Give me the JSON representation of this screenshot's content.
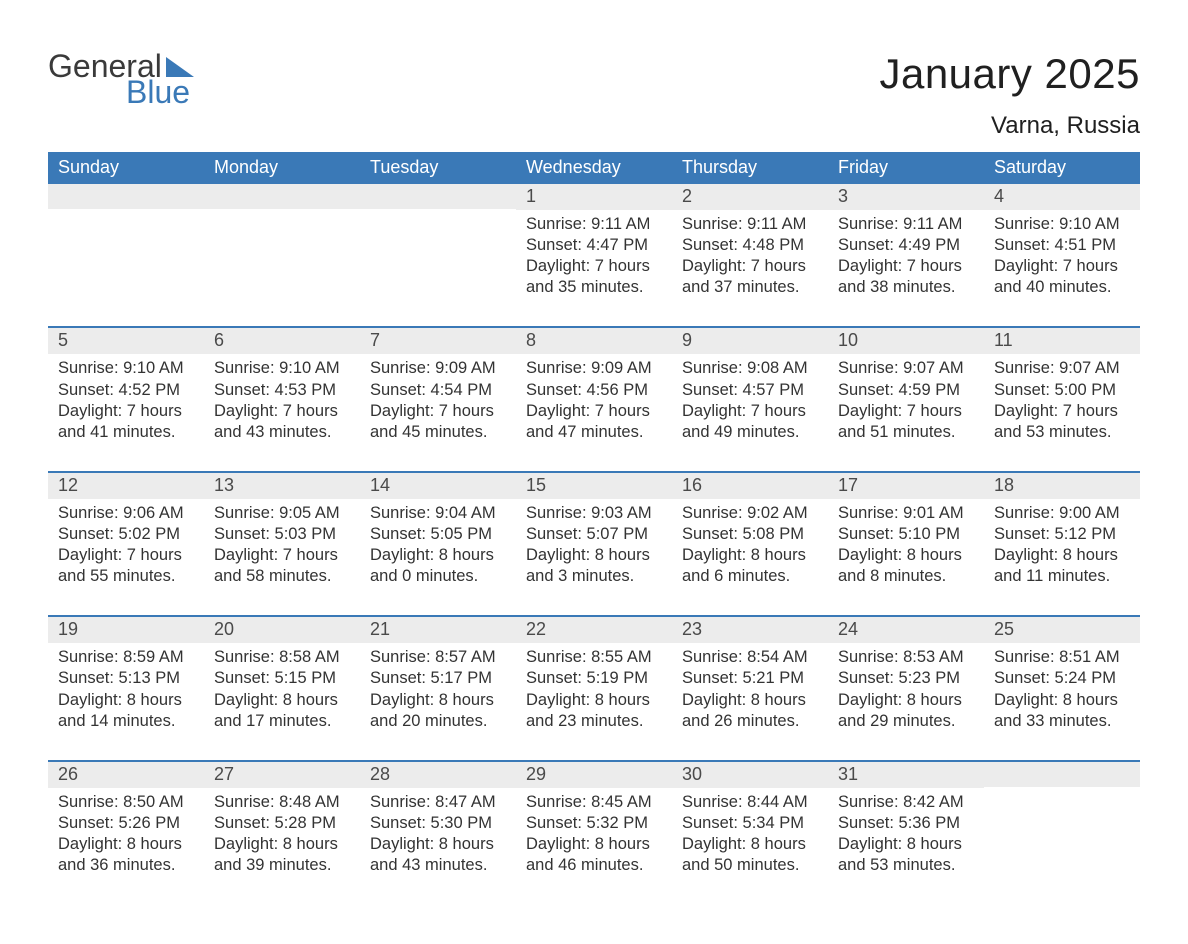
{
  "logo": {
    "word1": "General",
    "word2": "Blue"
  },
  "header": {
    "title": "January 2025",
    "location": "Varna, Russia"
  },
  "style": {
    "header_bg": "#3a79b7",
    "header_text": "#ffffff",
    "daynum_bg": "#ececec",
    "row_divider": "#3a79b7",
    "body_text": "#333333",
    "title_fontsize": 42,
    "location_fontsize": 24,
    "dayheader_fontsize": 18,
    "cell_fontsize": 16.5
  },
  "day_headers": [
    "Sunday",
    "Monday",
    "Tuesday",
    "Wednesday",
    "Thursday",
    "Friday",
    "Saturday"
  ],
  "weeks": [
    [
      null,
      null,
      null,
      {
        "n": "1",
        "sunrise": "Sunrise: 9:11 AM",
        "sunset": "Sunset: 4:47 PM",
        "daylight": "Daylight: 7 hours and 35 minutes."
      },
      {
        "n": "2",
        "sunrise": "Sunrise: 9:11 AM",
        "sunset": "Sunset: 4:48 PM",
        "daylight": "Daylight: 7 hours and 37 minutes."
      },
      {
        "n": "3",
        "sunrise": "Sunrise: 9:11 AM",
        "sunset": "Sunset: 4:49 PM",
        "daylight": "Daylight: 7 hours and 38 minutes."
      },
      {
        "n": "4",
        "sunrise": "Sunrise: 9:10 AM",
        "sunset": "Sunset: 4:51 PM",
        "daylight": "Daylight: 7 hours and 40 minutes."
      }
    ],
    [
      {
        "n": "5",
        "sunrise": "Sunrise: 9:10 AM",
        "sunset": "Sunset: 4:52 PM",
        "daylight": "Daylight: 7 hours and 41 minutes."
      },
      {
        "n": "6",
        "sunrise": "Sunrise: 9:10 AM",
        "sunset": "Sunset: 4:53 PM",
        "daylight": "Daylight: 7 hours and 43 minutes."
      },
      {
        "n": "7",
        "sunrise": "Sunrise: 9:09 AM",
        "sunset": "Sunset: 4:54 PM",
        "daylight": "Daylight: 7 hours and 45 minutes."
      },
      {
        "n": "8",
        "sunrise": "Sunrise: 9:09 AM",
        "sunset": "Sunset: 4:56 PM",
        "daylight": "Daylight: 7 hours and 47 minutes."
      },
      {
        "n": "9",
        "sunrise": "Sunrise: 9:08 AM",
        "sunset": "Sunset: 4:57 PM",
        "daylight": "Daylight: 7 hours and 49 minutes."
      },
      {
        "n": "10",
        "sunrise": "Sunrise: 9:07 AM",
        "sunset": "Sunset: 4:59 PM",
        "daylight": "Daylight: 7 hours and 51 minutes."
      },
      {
        "n": "11",
        "sunrise": "Sunrise: 9:07 AM",
        "sunset": "Sunset: 5:00 PM",
        "daylight": "Daylight: 7 hours and 53 minutes."
      }
    ],
    [
      {
        "n": "12",
        "sunrise": "Sunrise: 9:06 AM",
        "sunset": "Sunset: 5:02 PM",
        "daylight": "Daylight: 7 hours and 55 minutes."
      },
      {
        "n": "13",
        "sunrise": "Sunrise: 9:05 AM",
        "sunset": "Sunset: 5:03 PM",
        "daylight": "Daylight: 7 hours and 58 minutes."
      },
      {
        "n": "14",
        "sunrise": "Sunrise: 9:04 AM",
        "sunset": "Sunset: 5:05 PM",
        "daylight": "Daylight: 8 hours and 0 minutes."
      },
      {
        "n": "15",
        "sunrise": "Sunrise: 9:03 AM",
        "sunset": "Sunset: 5:07 PM",
        "daylight": "Daylight: 8 hours and 3 minutes."
      },
      {
        "n": "16",
        "sunrise": "Sunrise: 9:02 AM",
        "sunset": "Sunset: 5:08 PM",
        "daylight": "Daylight: 8 hours and 6 minutes."
      },
      {
        "n": "17",
        "sunrise": "Sunrise: 9:01 AM",
        "sunset": "Sunset: 5:10 PM",
        "daylight": "Daylight: 8 hours and 8 minutes."
      },
      {
        "n": "18",
        "sunrise": "Sunrise: 9:00 AM",
        "sunset": "Sunset: 5:12 PM",
        "daylight": "Daylight: 8 hours and 11 minutes."
      }
    ],
    [
      {
        "n": "19",
        "sunrise": "Sunrise: 8:59 AM",
        "sunset": "Sunset: 5:13 PM",
        "daylight": "Daylight: 8 hours and 14 minutes."
      },
      {
        "n": "20",
        "sunrise": "Sunrise: 8:58 AM",
        "sunset": "Sunset: 5:15 PM",
        "daylight": "Daylight: 8 hours and 17 minutes."
      },
      {
        "n": "21",
        "sunrise": "Sunrise: 8:57 AM",
        "sunset": "Sunset: 5:17 PM",
        "daylight": "Daylight: 8 hours and 20 minutes."
      },
      {
        "n": "22",
        "sunrise": "Sunrise: 8:55 AM",
        "sunset": "Sunset: 5:19 PM",
        "daylight": "Daylight: 8 hours and 23 minutes."
      },
      {
        "n": "23",
        "sunrise": "Sunrise: 8:54 AM",
        "sunset": "Sunset: 5:21 PM",
        "daylight": "Daylight: 8 hours and 26 minutes."
      },
      {
        "n": "24",
        "sunrise": "Sunrise: 8:53 AM",
        "sunset": "Sunset: 5:23 PM",
        "daylight": "Daylight: 8 hours and 29 minutes."
      },
      {
        "n": "25",
        "sunrise": "Sunrise: 8:51 AM",
        "sunset": "Sunset: 5:24 PM",
        "daylight": "Daylight: 8 hours and 33 minutes."
      }
    ],
    [
      {
        "n": "26",
        "sunrise": "Sunrise: 8:50 AM",
        "sunset": "Sunset: 5:26 PM",
        "daylight": "Daylight: 8 hours and 36 minutes."
      },
      {
        "n": "27",
        "sunrise": "Sunrise: 8:48 AM",
        "sunset": "Sunset: 5:28 PM",
        "daylight": "Daylight: 8 hours and 39 minutes."
      },
      {
        "n": "28",
        "sunrise": "Sunrise: 8:47 AM",
        "sunset": "Sunset: 5:30 PM",
        "daylight": "Daylight: 8 hours and 43 minutes."
      },
      {
        "n": "29",
        "sunrise": "Sunrise: 8:45 AM",
        "sunset": "Sunset: 5:32 PM",
        "daylight": "Daylight: 8 hours and 46 minutes."
      },
      {
        "n": "30",
        "sunrise": "Sunrise: 8:44 AM",
        "sunset": "Sunset: 5:34 PM",
        "daylight": "Daylight: 8 hours and 50 minutes."
      },
      {
        "n": "31",
        "sunrise": "Sunrise: 8:42 AM",
        "sunset": "Sunset: 5:36 PM",
        "daylight": "Daylight: 8 hours and 53 minutes."
      },
      null
    ]
  ]
}
